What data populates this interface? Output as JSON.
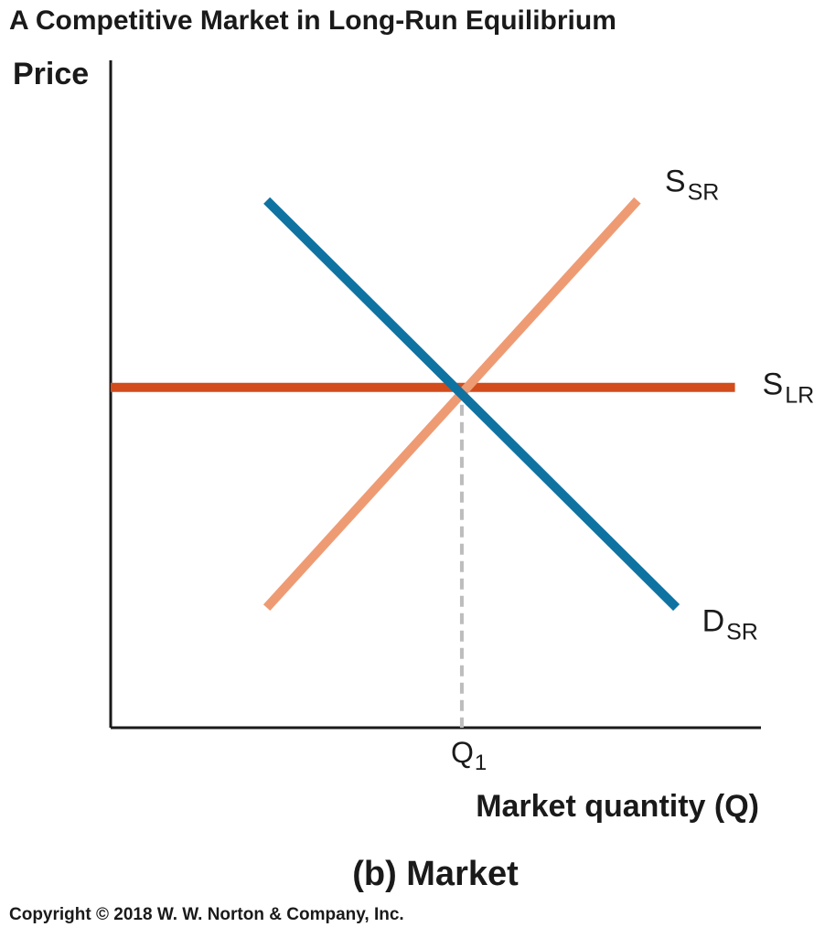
{
  "figure": {
    "title": "A Competitive Market in Long-Run Equilibrium",
    "panel_title": "(b) Market",
    "copyright": "Copyright © 2018 W. W. Norton & Company, Inc."
  },
  "colors": {
    "demand": "#0f73a2",
    "short_run_supply": "#ee9b74",
    "long_run_supply": "#d24c1c",
    "axis": "#1a1a1a",
    "guide": "#bdbdbd"
  },
  "chart_data": {
    "type": "line",
    "title": "A Competitive Market in Long-Run Equilibrium",
    "xlabel": "Market quantity (Q)",
    "ylabel": "Price",
    "xlim": [
      0,
      10
    ],
    "ylim": [
      0,
      10
    ],
    "grid": false,
    "legend": "none",
    "x_ticks": [
      {
        "main": "Q",
        "sub": "1",
        "x": 5.4
      }
    ],
    "series": [
      {
        "key": "D_SR",
        "label_main": "D",
        "label_sub": "SR",
        "color": "#0f73a2",
        "points": [
          [
            2.4,
            7.9
          ],
          [
            8.7,
            1.8
          ]
        ]
      },
      {
        "key": "S_SR",
        "label_main": "S",
        "label_sub": "SR",
        "color": "#ee9b74",
        "points": [
          [
            2.4,
            1.8
          ],
          [
            8.1,
            7.9
          ]
        ]
      },
      {
        "key": "S_LR",
        "label_main": "S",
        "label_sub": "LR",
        "color": "#d24c1c",
        "points": [
          [
            0,
            5.1
          ],
          [
            9.6,
            5.1
          ]
        ]
      }
    ],
    "guides": [
      {
        "type": "vertical-dashed",
        "x": 5.4,
        "from_y": 0,
        "to_y": 5.1
      }
    ]
  }
}
